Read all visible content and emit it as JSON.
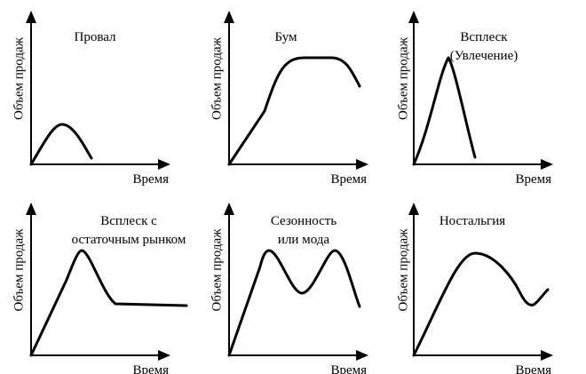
{
  "panels": [
    {
      "id": "fail",
      "title_lines": [
        "Провал"
      ],
      "x_label": "Время",
      "y_label": "Объем продаж"
    },
    {
      "id": "boom",
      "title_lines": [
        "Бум"
      ],
      "x_label": "Время",
      "y_label": "Объем продаж"
    },
    {
      "id": "fad",
      "title_lines": [
        "Всплеск",
        "(Увлечение)"
      ],
      "x_label": "Время",
      "y_label": "Объем продаж"
    },
    {
      "id": "fad-residual",
      "title_lines": [
        "Всплеск с",
        "остаточным рынком"
      ],
      "x_label": "Время",
      "y_label": "Объем продаж"
    },
    {
      "id": "seasonal",
      "title_lines": [
        "Сезонность",
        "или мода"
      ],
      "x_label": "Время",
      "y_label": "Объем продаж"
    },
    {
      "id": "nostalgia",
      "title_lines": [
        "Ностальгия"
      ],
      "x_label": "Время",
      "y_label": "Объем продаж"
    }
  ]
}
